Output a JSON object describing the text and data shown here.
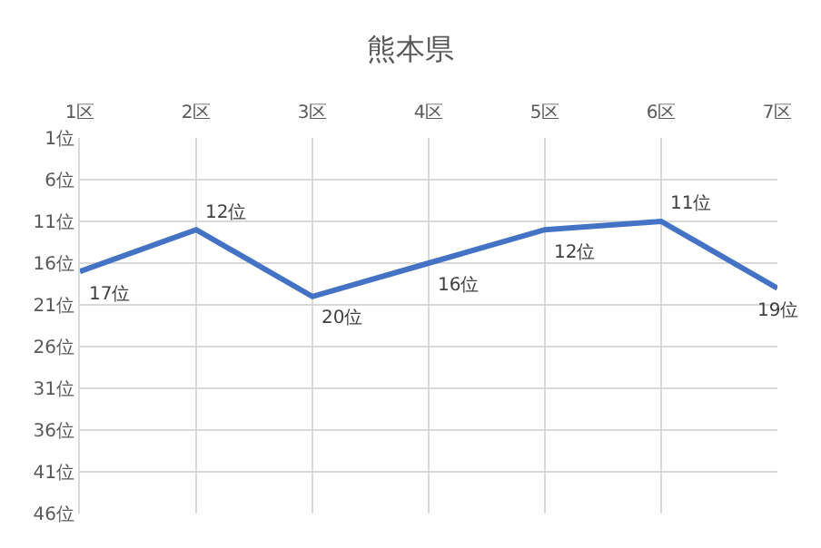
{
  "chart_data": {
    "type": "line",
    "title": "熊本県",
    "categories": [
      "1区",
      "2区",
      "3区",
      "4区",
      "5区",
      "6区",
      "7区"
    ],
    "series": [
      {
        "color": "#4472c4",
        "values": [
          17,
          12,
          20,
          16,
          12,
          11,
          19
        ],
        "value_labels": [
          "17位",
          "12位",
          "20位",
          "16位",
          "12位",
          "11位",
          "19位"
        ]
      }
    ],
    "ylim": [
      46,
      1
    ],
    "yticks": [
      {
        "value": 1,
        "label": "1位"
      },
      {
        "value": 6,
        "label": "6位"
      },
      {
        "value": 11,
        "label": "11位"
      },
      {
        "value": 16,
        "label": "16位"
      },
      {
        "value": 21,
        "label": "21位"
      },
      {
        "value": 26,
        "label": "26位"
      },
      {
        "value": 31,
        "label": "31位"
      },
      {
        "value": 36,
        "label": "36位"
      },
      {
        "value": 41,
        "label": "41位"
      },
      {
        "value": 46,
        "label": "46位"
      }
    ],
    "grid": true,
    "marker": "none",
    "line_style": "solid"
  }
}
